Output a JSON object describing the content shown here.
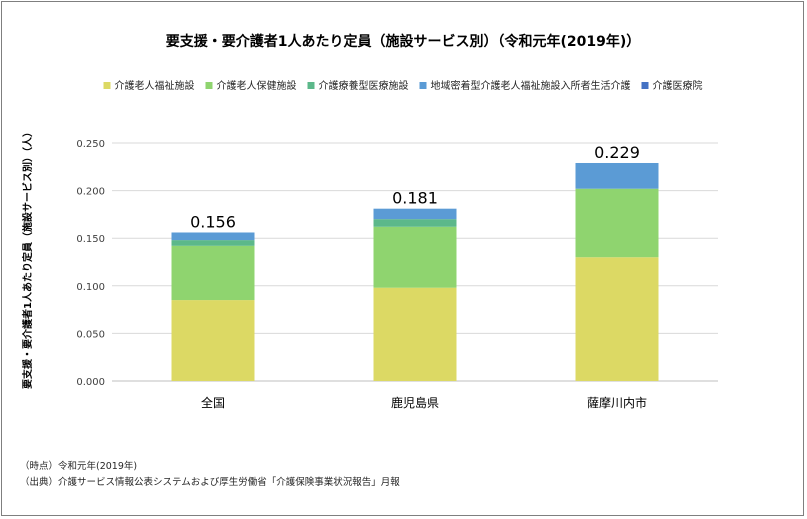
{
  "chart_data": {
    "type": "bar",
    "stacked": true,
    "title": "要支援・要介護者1人あたり定員（施設サービス別）（令和元年(2019年)）",
    "ylabel": "要支援・要介護者1人あたり定員（施設サービス別）（人）",
    "xlabel": "",
    "categories": [
      "全国",
      "鹿児島県",
      "薩摩川内市"
    ],
    "ylim": [
      0,
      0.25
    ],
    "yticks": [
      "0.000",
      "0.050",
      "0.100",
      "0.150",
      "0.200",
      "0.250"
    ],
    "ytick_values": [
      0,
      0.05,
      0.1,
      0.15,
      0.2,
      0.25
    ],
    "grid": true,
    "legend_position": "top",
    "series": [
      {
        "name": "介護老人福祉施設",
        "color": "#dcd964",
        "values": [
          0.085,
          0.098,
          0.13
        ]
      },
      {
        "name": "介護老人保健施設",
        "color": "#8fd46f",
        "values": [
          0.057,
          0.064,
          0.072
        ]
      },
      {
        "name": "介護療養型医療施設",
        "color": "#5cb88a",
        "values": [
          0.006,
          0.008,
          0.0
        ]
      },
      {
        "name": "地域密着型介護老人福祉施設入所者生活介護",
        "color": "#5b9bd5",
        "values": [
          0.008,
          0.011,
          0.027
        ]
      },
      {
        "name": "介護医療院",
        "color": "#4472c4",
        "values": [
          0.0,
          0.0,
          0.0
        ]
      }
    ],
    "totals": [
      "0.156",
      "0.181",
      "0.229"
    ]
  },
  "notes": {
    "time": "（時点）令和元年(2019年)",
    "source": "（出典）介護サービス情報公表システムおよび厚生労働省「介護保険事業状況報告」月報"
  }
}
